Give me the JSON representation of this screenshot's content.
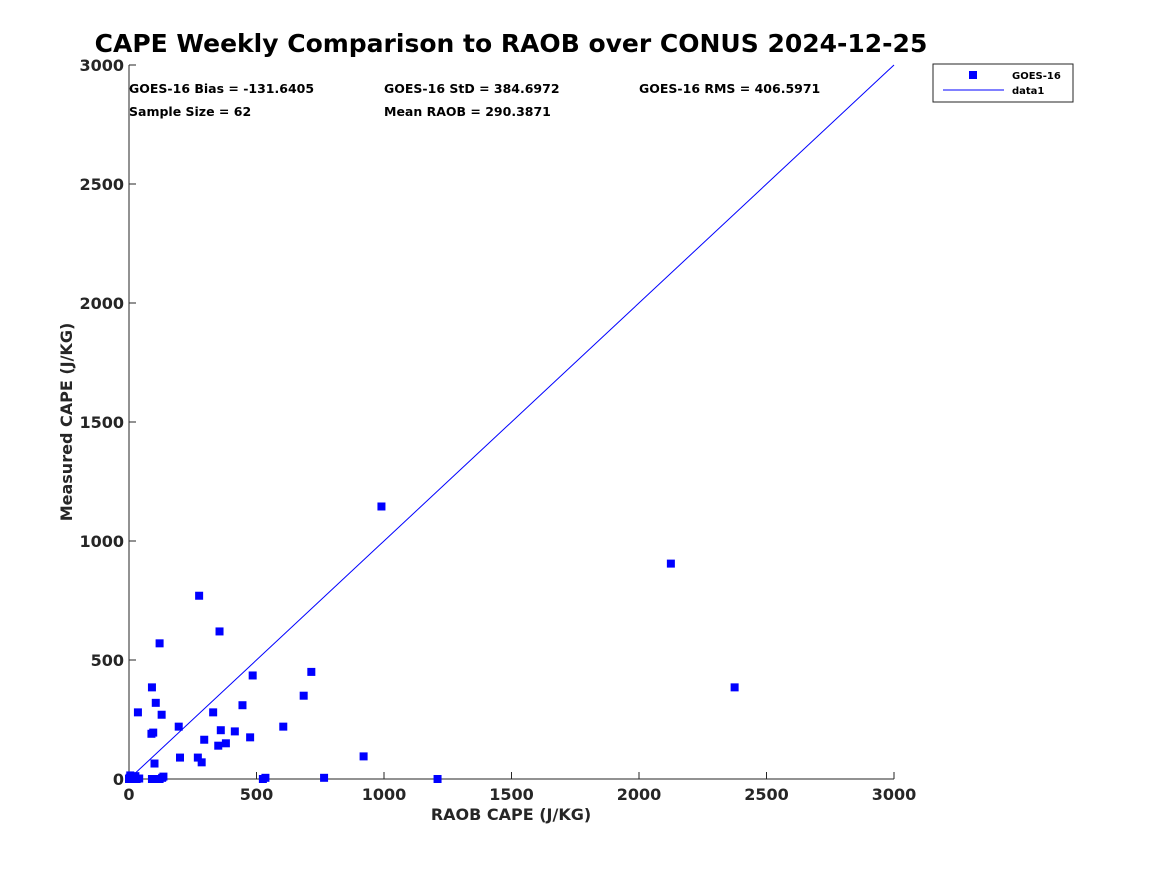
{
  "chart_data": {
    "type": "scatter",
    "title": "CAPE Weekly Comparison to RAOB over CONUS 2024-12-25",
    "xlabel": "RAOB CAPE (J/KG)",
    "ylabel": "Measured CAPE (J/KG)",
    "xlim": [
      0,
      3000
    ],
    "ylim": [
      0,
      3000
    ],
    "x_ticks": [
      "0",
      "500",
      "1000",
      "1500",
      "2000",
      "2500",
      "3000"
    ],
    "y_ticks": [
      "0",
      "500",
      "1000",
      "1500",
      "2000",
      "2500",
      "3000"
    ],
    "grid": false,
    "legend_position": "top-right-outside",
    "series": [
      {
        "name": "GOES-16",
        "marker": "square",
        "color": "#0000ff",
        "points": [
          [
            0,
            0
          ],
          [
            2,
            5
          ],
          [
            5,
            15
          ],
          [
            8,
            0
          ],
          [
            12,
            8
          ],
          [
            15,
            0
          ],
          [
            18,
            3
          ],
          [
            25,
            12
          ],
          [
            30,
            0
          ],
          [
            40,
            2
          ],
          [
            35,
            280
          ],
          [
            90,
            0
          ],
          [
            100,
            0
          ],
          [
            120,
            0
          ],
          [
            130,
            5
          ],
          [
            135,
            10
          ],
          [
            88,
            190
          ],
          [
            95,
            195
          ],
          [
            100,
            65
          ],
          [
            90,
            385
          ],
          [
            105,
            320
          ],
          [
            120,
            570
          ],
          [
            128,
            270
          ],
          [
            200,
            90
          ],
          [
            195,
            220
          ],
          [
            270,
            90
          ],
          [
            275,
            770
          ],
          [
            285,
            70
          ],
          [
            295,
            165
          ],
          [
            330,
            280
          ],
          [
            350,
            140
          ],
          [
            355,
            620
          ],
          [
            360,
            205
          ],
          [
            380,
            150
          ],
          [
            415,
            200
          ],
          [
            445,
            310
          ],
          [
            475,
            175
          ],
          [
            485,
            435
          ],
          [
            525,
            0
          ],
          [
            535,
            5
          ],
          [
            605,
            220
          ],
          [
            685,
            350
          ],
          [
            715,
            450
          ],
          [
            765,
            5
          ],
          [
            920,
            95
          ],
          [
            990,
            1145
          ],
          [
            1210,
            0
          ],
          [
            2125,
            905
          ],
          [
            2375,
            385
          ]
        ]
      },
      {
        "name": "data1",
        "type": "line",
        "color": "#0000ff",
        "x": [
          0,
          3000
        ],
        "y": [
          0,
          3000
        ]
      }
    ],
    "legend": [
      "GOES-16",
      "data1"
    ],
    "annotations": [
      "GOES-16 Bias = -131.6405",
      "GOES-16 StD = 384.6972",
      "GOES-16 RMS = 406.5971",
      "Sample Size = 62",
      "Mean RAOB = 290.3871"
    ]
  }
}
